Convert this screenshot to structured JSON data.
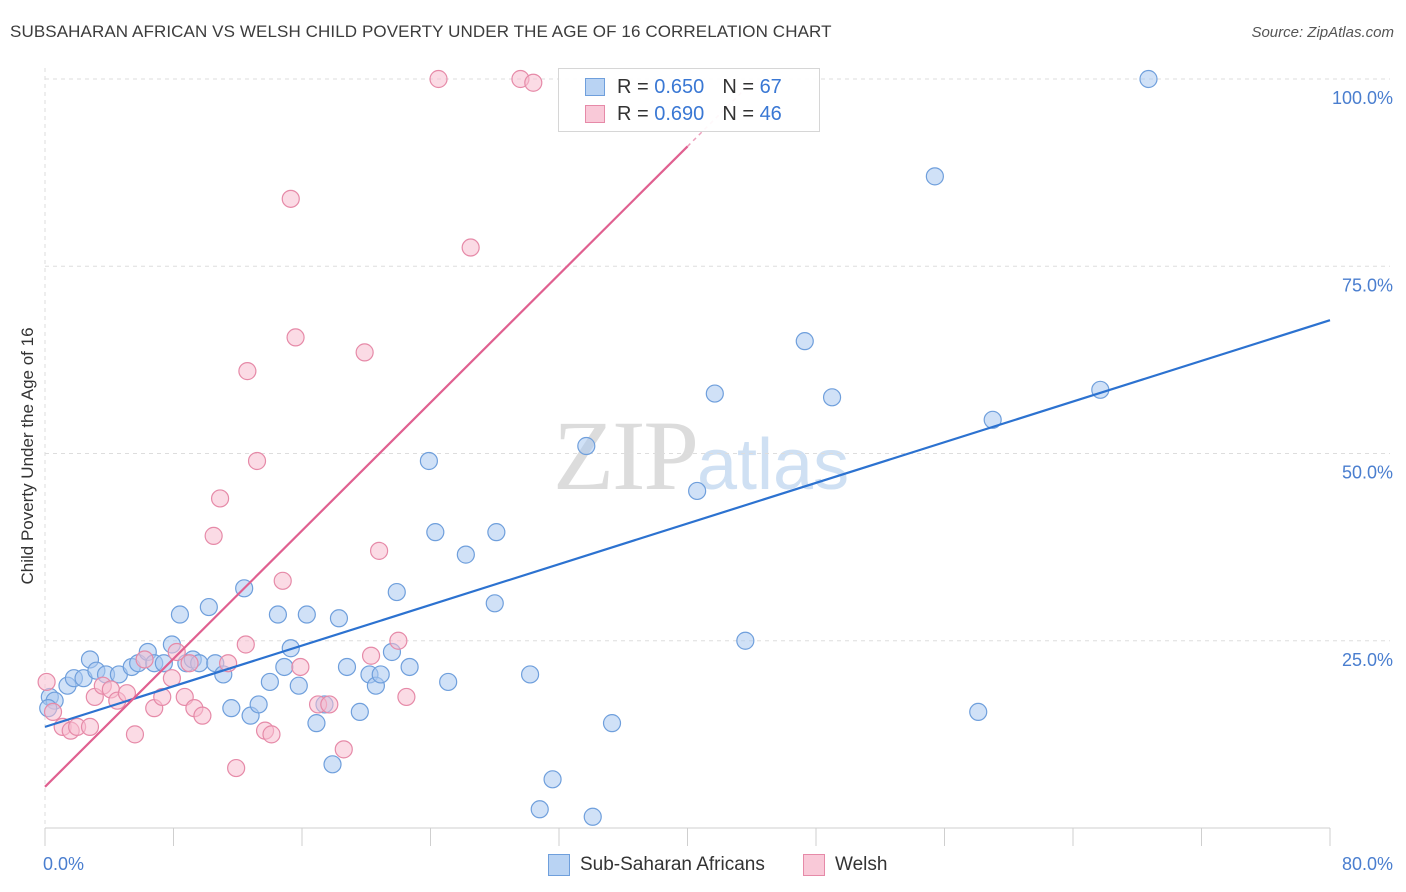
{
  "header": {
    "title": "SUBSAHARAN AFRICAN VS WELSH CHILD POVERTY UNDER THE AGE OF 16 CORRELATION CHART",
    "source": "Source: ZipAtlas.com"
  },
  "watermark": {
    "zip": "ZIP",
    "atlas": "atlas"
  },
  "legend": {
    "rows": [
      {
        "r_label": "R = ",
        "r_value": "0.650",
        "n_label": "N = ",
        "n_value": "67"
      },
      {
        "r_label": "R = ",
        "r_value": "0.690",
        "n_label": "N = ",
        "n_value": "46"
      }
    ]
  },
  "bottom_legend": {
    "blue": "Sub-Saharan Africans",
    "pink": "Welsh"
  },
  "colors": {
    "blue_fill": "#a9c8f0",
    "blue_stroke": "#6f9fdc",
    "blue_line": "#2c72d0",
    "pink_fill": "#f7bdd0",
    "pink_stroke": "#e68aa8",
    "pink_line": "#e06090",
    "tick": "#4a7ecf",
    "grid": "#dddddd"
  },
  "chart_data": {
    "type": "scatter",
    "title": "SUBSAHARAN AFRICAN VS WELSH CHILD POVERTY UNDER THE AGE OF 16 CORRELATION CHART",
    "xlabel": "",
    "ylabel": "Child Poverty Under the Age of 16",
    "xlim": [
      0,
      80
    ],
    "ylim": [
      0,
      100
    ],
    "x_tick_labels": [
      "0.0%",
      "80.0%"
    ],
    "y_tick_labels": [
      "25.0%",
      "50.0%",
      "75.0%",
      "100.0%"
    ],
    "y_ticks": [
      25,
      50,
      75,
      100
    ],
    "grid": true,
    "legend_position": "top-center",
    "series": [
      {
        "name": "Sub-Saharan Africans",
        "color": "#6f9fdc",
        "r": 0.65,
        "n": 67,
        "trend": {
          "x": [
            0,
            80
          ],
          "y": [
            13.5,
            67.8
          ]
        },
        "points": [
          [
            0.3,
            17.5
          ],
          [
            0.6,
            17.0
          ],
          [
            1.4,
            19.0
          ],
          [
            1.8,
            20.0
          ],
          [
            2.4,
            20.0
          ],
          [
            2.8,
            22.5
          ],
          [
            3.2,
            21.0
          ],
          [
            3.8,
            20.5
          ],
          [
            4.6,
            20.5
          ],
          [
            5.4,
            21.5
          ],
          [
            5.8,
            22.0
          ],
          [
            6.4,
            23.5
          ],
          [
            6.8,
            22.0
          ],
          [
            7.4,
            22.0
          ],
          [
            7.9,
            24.5
          ],
          [
            8.4,
            28.5
          ],
          [
            8.8,
            22.0
          ],
          [
            9.2,
            22.5
          ],
          [
            9.6,
            22.0
          ],
          [
            10.2,
            29.5
          ],
          [
            10.6,
            22.0
          ],
          [
            11.1,
            20.5
          ],
          [
            11.6,
            16.0
          ],
          [
            12.4,
            32.0
          ],
          [
            12.8,
            15.0
          ],
          [
            13.3,
            16.5
          ],
          [
            14.0,
            19.5
          ],
          [
            14.5,
            28.5
          ],
          [
            14.9,
            21.5
          ],
          [
            15.3,
            24.0
          ],
          [
            15.8,
            19.0
          ],
          [
            16.3,
            28.5
          ],
          [
            16.9,
            14.0
          ],
          [
            17.4,
            16.5
          ],
          [
            17.9,
            8.5
          ],
          [
            18.3,
            28.0
          ],
          [
            18.8,
            21.5
          ],
          [
            19.6,
            15.5
          ],
          [
            20.2,
            20.5
          ],
          [
            20.6,
            19.0
          ],
          [
            20.9,
            20.5
          ],
          [
            21.6,
            23.5
          ],
          [
            21.9,
            31.5
          ],
          [
            22.7,
            21.5
          ],
          [
            23.9,
            49.0
          ],
          [
            24.3,
            39.5
          ],
          [
            25.1,
            19.5
          ],
          [
            26.2,
            36.5
          ],
          [
            28.0,
            30.0
          ],
          [
            28.1,
            39.5
          ],
          [
            30.2,
            20.5
          ],
          [
            30.8,
            2.5
          ],
          [
            31.6,
            6.5
          ],
          [
            33.7,
            51.0
          ],
          [
            34.1,
            1.5
          ],
          [
            35.3,
            14.0
          ],
          [
            40.6,
            45.0
          ],
          [
            41.7,
            58.0
          ],
          [
            43.6,
            25.0
          ],
          [
            47.3,
            65.0
          ],
          [
            49.0,
            57.5
          ],
          [
            55.4,
            87.0
          ],
          [
            58.1,
            15.5
          ],
          [
            59.0,
            54.5
          ],
          [
            65.7,
            58.5
          ],
          [
            68.7,
            100.0
          ],
          [
            0.2,
            16.0
          ]
        ]
      },
      {
        "name": "Welsh",
        "color": "#e68aa8",
        "r": 0.69,
        "n": 46,
        "trend": {
          "x": [
            0,
            40.0
          ],
          "y": [
            5.5,
            91.0
          ]
        },
        "points": [
          [
            0.1,
            19.5
          ],
          [
            0.5,
            15.5
          ],
          [
            1.1,
            13.5
          ],
          [
            1.6,
            13.0
          ],
          [
            2.0,
            13.5
          ],
          [
            2.8,
            13.5
          ],
          [
            3.1,
            17.5
          ],
          [
            3.6,
            19.0
          ],
          [
            4.1,
            18.5
          ],
          [
            4.5,
            17.0
          ],
          [
            5.1,
            18.0
          ],
          [
            5.6,
            12.5
          ],
          [
            6.2,
            22.5
          ],
          [
            6.8,
            16.0
          ],
          [
            7.3,
            17.5
          ],
          [
            7.9,
            20.0
          ],
          [
            8.2,
            23.5
          ],
          [
            8.7,
            17.5
          ],
          [
            9.3,
            16.0
          ],
          [
            9.8,
            15.0
          ],
          [
            10.5,
            39.0
          ],
          [
            10.9,
            44.0
          ],
          [
            11.4,
            22.0
          ],
          [
            11.9,
            8.0
          ],
          [
            12.5,
            24.5
          ],
          [
            12.6,
            61.0
          ],
          [
            13.2,
            49.0
          ],
          [
            13.7,
            13.0
          ],
          [
            14.1,
            12.5
          ],
          [
            14.8,
            33.0
          ],
          [
            15.3,
            84.0
          ],
          [
            15.6,
            65.5
          ],
          [
            15.9,
            21.5
          ],
          [
            17.0,
            16.5
          ],
          [
            17.7,
            16.5
          ],
          [
            18.6,
            10.5
          ],
          [
            19.9,
            63.5
          ],
          [
            20.3,
            23.0
          ],
          [
            20.8,
            37.0
          ],
          [
            22.0,
            25.0
          ],
          [
            22.5,
            17.5
          ],
          [
            24.5,
            100.0
          ],
          [
            26.5,
            77.5
          ],
          [
            29.6,
            100.0
          ],
          [
            30.4,
            99.5
          ],
          [
            9.0,
            22.0
          ]
        ]
      }
    ]
  }
}
